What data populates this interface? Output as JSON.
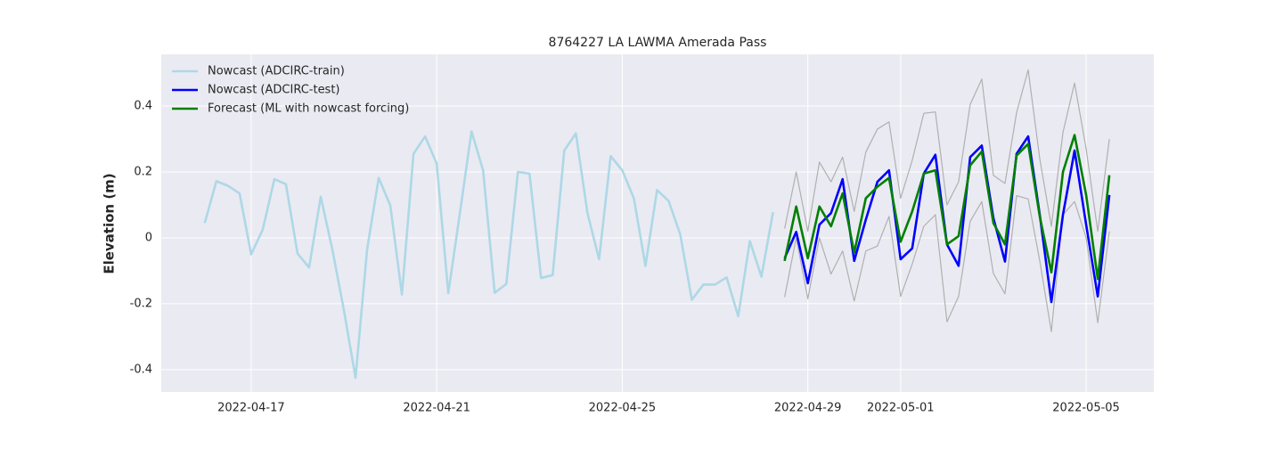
{
  "chart_data": {
    "type": "line",
    "title": "8764227 LA LAWMA Amerada Pass",
    "y_label": "Elevation (m)",
    "xlim": [
      "2022-04-15T01:30",
      "2022-05-06T11:00"
    ],
    "ylim": [
      -0.468,
      0.557
    ],
    "xticks": [
      "2022-04-17",
      "2022-04-21",
      "2022-04-25",
      "2022-04-29",
      "2022-05-01",
      "2022-05-05"
    ],
    "yticks": [
      -0.4,
      -0.2,
      0.0,
      0.2,
      0.4
    ],
    "grid": true,
    "legend": "upper left",
    "series": [
      {
        "name": "Nowcast (ADCIRC-train)",
        "color": "#add8e6",
        "x": [
          "2022-04-16T00:00",
          "2022-04-16T06:00",
          "2022-04-16T12:00",
          "2022-04-16T18:00",
          "2022-04-17T00:00",
          "2022-04-17T06:00",
          "2022-04-17T12:00",
          "2022-04-17T18:00",
          "2022-04-18T00:00",
          "2022-04-18T06:00",
          "2022-04-18T12:00",
          "2022-04-18T18:00",
          "2022-04-19T00:00",
          "2022-04-19T06:00",
          "2022-04-19T12:00",
          "2022-04-19T18:00",
          "2022-04-20T00:00",
          "2022-04-20T06:00",
          "2022-04-20T12:00",
          "2022-04-20T18:00",
          "2022-04-21T00:00",
          "2022-04-21T06:00",
          "2022-04-21T12:00",
          "2022-04-21T18:00",
          "2022-04-22T00:00",
          "2022-04-22T06:00",
          "2022-04-22T12:00",
          "2022-04-22T18:00",
          "2022-04-23T00:00",
          "2022-04-23T06:00",
          "2022-04-23T12:00",
          "2022-04-23T18:00",
          "2022-04-24T00:00",
          "2022-04-24T06:00",
          "2022-04-24T12:00",
          "2022-04-24T18:00",
          "2022-04-25T00:00",
          "2022-04-25T06:00",
          "2022-04-25T12:00",
          "2022-04-25T18:00",
          "2022-04-26T00:00",
          "2022-04-26T06:00",
          "2022-04-26T12:00",
          "2022-04-26T18:00",
          "2022-04-27T00:00",
          "2022-04-27T06:00",
          "2022-04-27T12:00",
          "2022-04-27T18:00",
          "2022-04-28T00:00",
          "2022-04-28T06:00"
        ],
        "values": [
          0.045,
          0.172,
          0.158,
          0.135,
          -0.05,
          0.025,
          0.178,
          0.163,
          -0.048,
          -0.09,
          0.125,
          -0.035,
          -0.22,
          -0.425,
          -0.035,
          0.182,
          0.098,
          -0.172,
          0.255,
          0.308,
          0.225,
          -0.168,
          0.075,
          0.323,
          0.205,
          -0.167,
          -0.14,
          0.2,
          0.195,
          -0.122,
          -0.113,
          0.265,
          0.317,
          0.075,
          -0.065,
          0.248,
          0.205,
          0.12,
          -0.085,
          0.145,
          0.112,
          0.01,
          -0.188,
          -0.142,
          -0.142,
          -0.12,
          -0.238,
          -0.01,
          -0.118,
          0.078
        ]
      },
      {
        "name": "Nowcast (ADCIRC-test)",
        "color": "#0000ff",
        "x": [
          "2022-04-28T12:00",
          "2022-04-28T18:00",
          "2022-04-29T00:00",
          "2022-04-29T06:00",
          "2022-04-29T12:00",
          "2022-04-29T18:00",
          "2022-04-30T00:00",
          "2022-04-30T06:00",
          "2022-04-30T12:00",
          "2022-04-30T18:00",
          "2022-05-01T00:00",
          "2022-05-01T06:00",
          "2022-05-01T12:00",
          "2022-05-01T18:00",
          "2022-05-02T00:00",
          "2022-05-02T06:00",
          "2022-05-02T12:00",
          "2022-05-02T18:00",
          "2022-05-03T00:00",
          "2022-05-03T06:00",
          "2022-05-03T12:00",
          "2022-05-03T18:00",
          "2022-05-04T00:00",
          "2022-05-04T06:00",
          "2022-05-04T12:00",
          "2022-05-04T18:00",
          "2022-05-05T00:00",
          "2022-05-05T06:00",
          "2022-05-05T12:00"
        ],
        "values": [
          -0.062,
          0.018,
          -0.138,
          0.04,
          0.075,
          0.178,
          -0.07,
          0.055,
          0.17,
          0.205,
          -0.065,
          -0.032,
          0.195,
          0.252,
          -0.02,
          -0.085,
          0.245,
          0.28,
          0.06,
          -0.072,
          0.255,
          0.308,
          0.07,
          -0.195,
          0.07,
          0.265,
          0.04,
          -0.178,
          0.13
        ]
      },
      {
        "name": "Forecast (ML with nowcast forcing)",
        "color": "#008000",
        "x": [
          "2022-04-28T12:00",
          "2022-04-28T18:00",
          "2022-04-29T00:00",
          "2022-04-29T06:00",
          "2022-04-29T12:00",
          "2022-04-29T18:00",
          "2022-04-30T00:00",
          "2022-04-30T06:00",
          "2022-04-30T12:00",
          "2022-04-30T18:00",
          "2022-05-01T00:00",
          "2022-05-01T06:00",
          "2022-05-01T12:00",
          "2022-05-01T18:00",
          "2022-05-02T00:00",
          "2022-05-02T06:00",
          "2022-05-02T12:00",
          "2022-05-02T18:00",
          "2022-05-03T00:00",
          "2022-05-03T06:00",
          "2022-05-03T12:00",
          "2022-05-03T18:00",
          "2022-05-04T00:00",
          "2022-05-04T06:00",
          "2022-05-04T12:00",
          "2022-05-04T18:00",
          "2022-05-05T00:00",
          "2022-05-05T06:00",
          "2022-05-05T12:00"
        ],
        "values": [
          -0.07,
          0.095,
          -0.062,
          0.095,
          0.035,
          0.135,
          -0.045,
          0.12,
          0.155,
          0.182,
          -0.012,
          0.08,
          0.195,
          0.205,
          -0.02,
          0.005,
          0.22,
          0.262,
          0.045,
          -0.02,
          0.25,
          0.285,
          0.065,
          -0.105,
          0.2,
          0.312,
          0.13,
          -0.125,
          0.19
        ],
        "bounds": {
          "color": "#b0b0b0",
          "upper": [
            0.028,
            0.2,
            0.02,
            0.23,
            0.17,
            0.245,
            0.08,
            0.26,
            0.33,
            0.352,
            0.12,
            0.235,
            0.378,
            0.382,
            0.1,
            0.17,
            0.405,
            0.482,
            0.19,
            0.165,
            0.38,
            0.51,
            0.24,
            0.035,
            0.32,
            0.47,
            0.27,
            0.02,
            0.3
          ],
          "lower": [
            -0.18,
            0.0,
            -0.185,
            0.0,
            -0.11,
            -0.04,
            -0.192,
            -0.04,
            -0.025,
            0.065,
            -0.178,
            -0.08,
            0.035,
            0.07,
            -0.255,
            -0.178,
            0.05,
            0.11,
            -0.108,
            -0.17,
            0.128,
            0.118,
            -0.07,
            -0.285,
            0.07,
            0.11,
            0.0,
            -0.258,
            0.02
          ]
        }
      }
    ]
  }
}
